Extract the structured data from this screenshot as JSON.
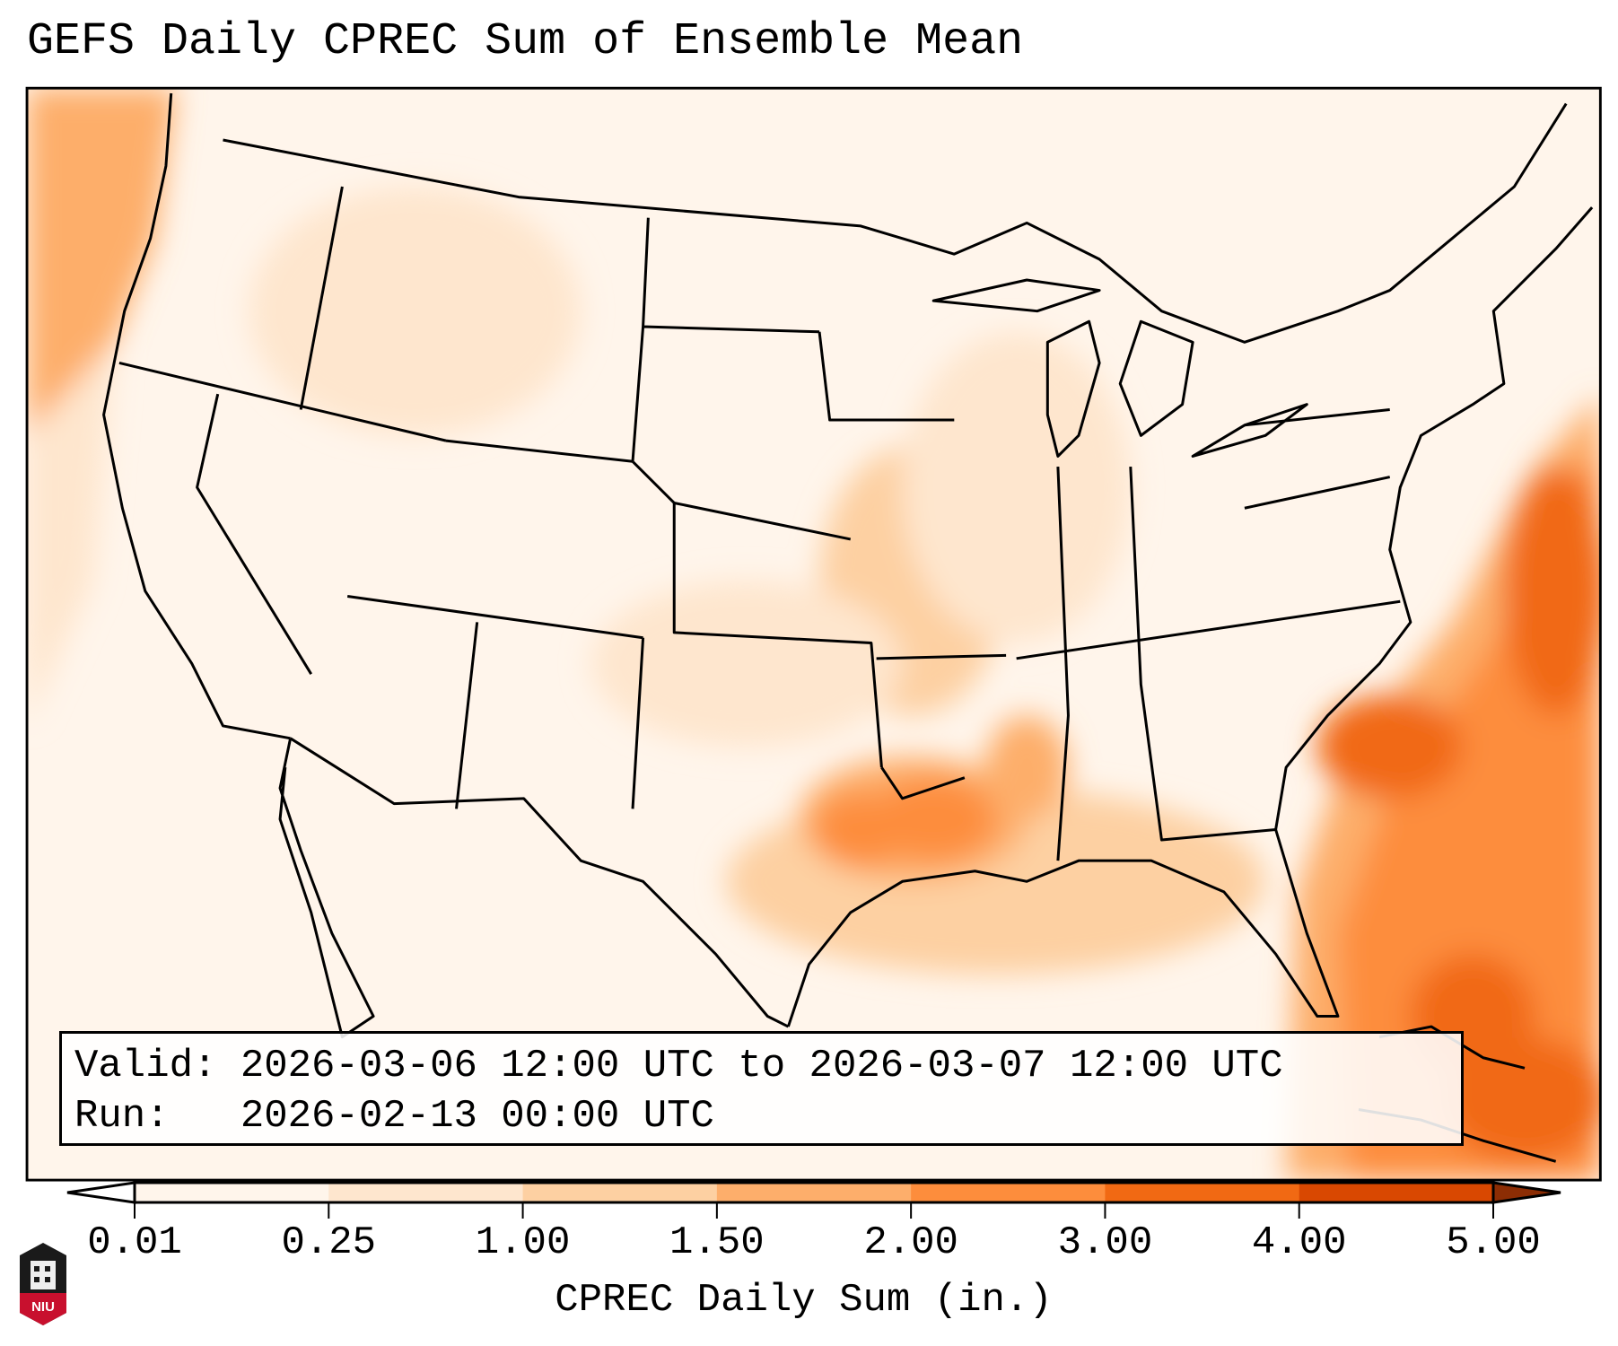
{
  "title": "GEFS Daily CPREC Sum of Ensemble Mean",
  "info": {
    "valid": "Valid: 2026-03-06 12:00 UTC to 2026-03-07 12:00 UTC",
    "run": "Run:   2026-02-13 00:00 UTC"
  },
  "logo_text": "NIU",
  "chart_data": {
    "type": "heatmap",
    "title": "GEFS Daily CPREC Sum of Ensemble Mean",
    "colorbar": {
      "label": "CPREC Daily Sum (in.)",
      "ticks": [
        "0.01",
        "0.25",
        "1.00",
        "1.50",
        "2.00",
        "3.00",
        "4.00",
        "5.00"
      ],
      "colors": [
        "#fff5eb",
        "#fee6ce",
        "#fdd0a2",
        "#fdae6b",
        "#fd8d3c",
        "#f16913",
        "#d94801"
      ],
      "under_color": "#ffffff",
      "over_color": "#8c2d04",
      "extend": "both"
    },
    "regions": [
      {
        "area": "Pacific off Northwest coast",
        "level": "0.25-1.50"
      },
      {
        "area": "Western US interior",
        "level": "0.01-1.00"
      },
      {
        "area": "Central Plains / Midwest",
        "level": "0.25-1.00"
      },
      {
        "area": "Arkansas / Louisiana / Mississippi",
        "level": "1.00-3.00"
      },
      {
        "area": "Gulf of Mexico",
        "level": "0.25-1.50"
      },
      {
        "area": "Western Atlantic off Southeast coast",
        "level": "1.50-4.00"
      }
    ]
  }
}
